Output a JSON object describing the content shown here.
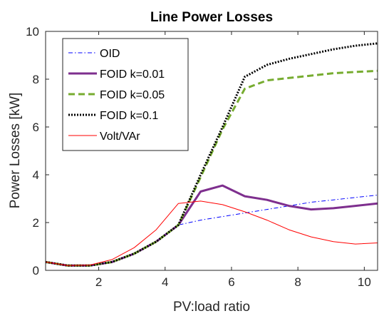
{
  "chart_data": {
    "type": "line",
    "title": "Line Power Losses",
    "xlabel": "PV:load ratio",
    "ylabel": "Power Losses [kW]",
    "xlim": [
      0.4,
      10.4
    ],
    "ylim": [
      0,
      10
    ],
    "xticks": [
      2,
      4,
      6,
      8,
      10
    ],
    "yticks": [
      0,
      2,
      4,
      6,
      8,
      10
    ],
    "grid": false,
    "legend_position": "top-left",
    "x": [
      0.4,
      1.07,
      1.73,
      2.4,
      3.07,
      3.73,
      4.4,
      5.07,
      5.73,
      6.4,
      7.07,
      7.73,
      8.4,
      9.07,
      9.73,
      10.4
    ],
    "series": [
      {
        "name": "OID",
        "color": "#0000ff",
        "dash": "dashdot",
        "width": 1,
        "values": [
          0.35,
          0.2,
          0.2,
          0.35,
          0.7,
          1.2,
          1.9,
          2.1,
          2.25,
          2.4,
          2.55,
          2.7,
          2.85,
          2.95,
          3.05,
          3.15
        ]
      },
      {
        "name": "FOID k=0.01",
        "color": "#7e2f8e",
        "dash": "solid",
        "width": 3,
        "values": [
          0.35,
          0.2,
          0.2,
          0.35,
          0.7,
          1.2,
          1.9,
          3.3,
          3.55,
          3.1,
          2.95,
          2.7,
          2.55,
          2.6,
          2.7,
          2.8
        ]
      },
      {
        "name": "FOID k=0.05",
        "color": "#77ac30",
        "dash": "dashed",
        "width": 3,
        "values": [
          0.35,
          0.2,
          0.2,
          0.35,
          0.7,
          1.2,
          1.9,
          3.9,
          5.9,
          7.6,
          7.95,
          8.05,
          8.15,
          8.25,
          8.3,
          8.35
        ]
      },
      {
        "name": "FOID k=0.1",
        "color": "#000000",
        "dash": "dotted",
        "width": 3,
        "values": [
          0.35,
          0.2,
          0.2,
          0.35,
          0.7,
          1.2,
          1.9,
          4.0,
          6.0,
          8.1,
          8.6,
          8.85,
          9.05,
          9.25,
          9.4,
          9.5
        ]
      },
      {
        "name": "Volt/VAr",
        "color": "#ff0000",
        "dash": "solid",
        "width": 1,
        "values": [
          0.35,
          0.2,
          0.22,
          0.45,
          0.95,
          1.7,
          2.8,
          2.9,
          2.75,
          2.45,
          2.1,
          1.7,
          1.4,
          1.2,
          1.1,
          1.15
        ]
      }
    ]
  }
}
